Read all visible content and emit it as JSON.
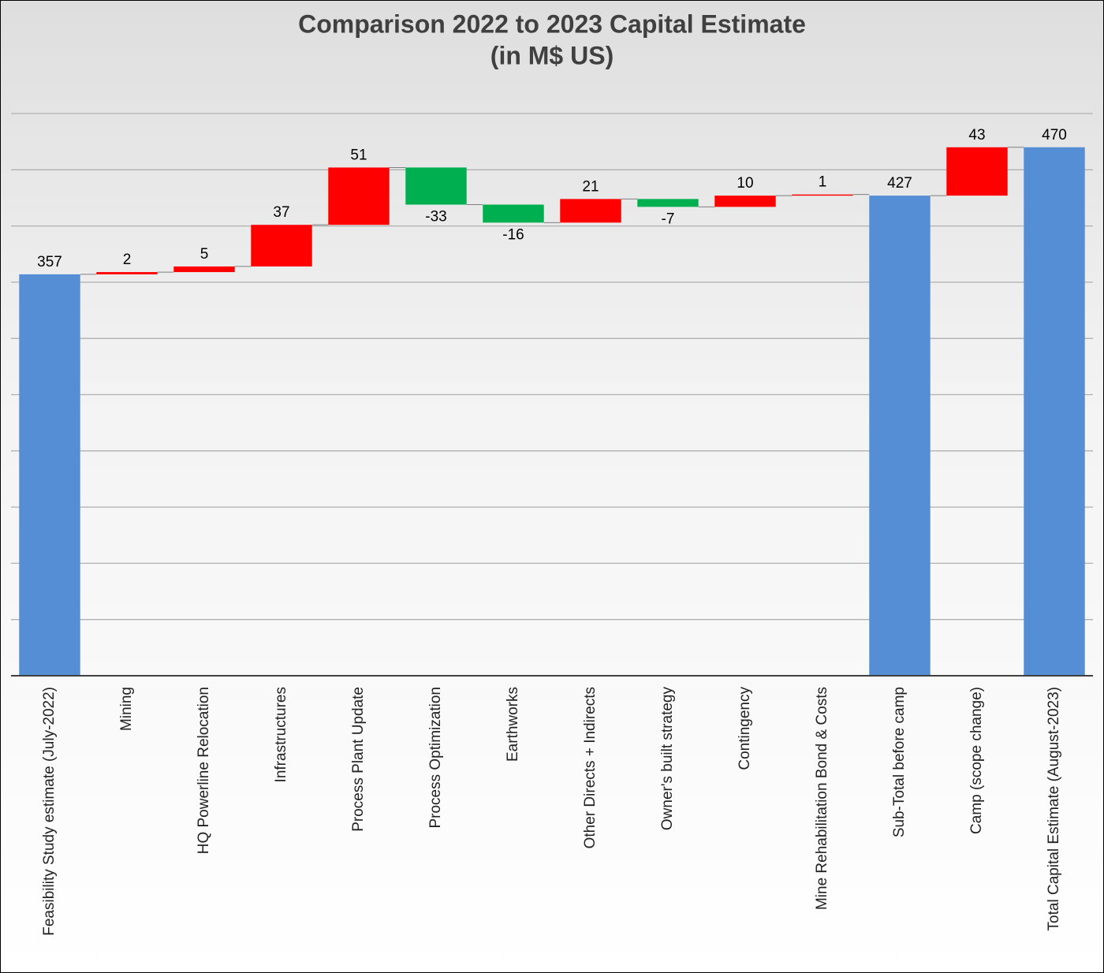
{
  "chart_data": {
    "type": "waterfall",
    "title": [
      "Comparison 2022 to 2023 Capital Estimate",
      "(in M$ US)"
    ],
    "categories": [
      "Feasibility Study estimate (July-2022)",
      "Mining",
      "HQ Powerline Relocation",
      "Infrastructures",
      "Process Plant Update",
      "Process Optimization",
      "Earthworks",
      "Other Directs + Indirects",
      "Owner's built strategy",
      "Contingency",
      "Mine Rehabilitation Bond & Costs",
      "Sub-Total before camp",
      "Camp (scope change)",
      "Total Capital Estimate (August-2023)"
    ],
    "values": [
      357,
      2,
      5,
      37,
      51,
      -33,
      -16,
      21,
      -7,
      10,
      1,
      427,
      43,
      470
    ],
    "totals": [
      true,
      false,
      false,
      false,
      false,
      false,
      false,
      false,
      false,
      false,
      false,
      true,
      false,
      true
    ],
    "colors": {
      "total": "#558ed5",
      "increase": "#ff0000",
      "decrease": "#00b050"
    },
    "ylim": [
      0,
      500
    ],
    "yticks": [
      0,
      50,
      100,
      150,
      200,
      250,
      300,
      350,
      400,
      450,
      500
    ],
    "ytick_labels_visible": false,
    "grid": true
  }
}
